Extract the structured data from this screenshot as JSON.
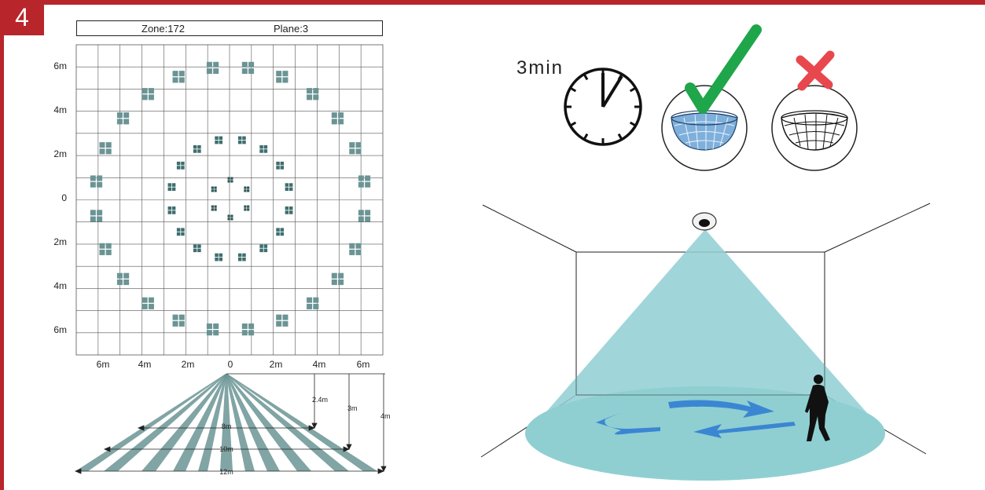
{
  "step_number": "4",
  "detection_header": {
    "zone_label": "Zone:172",
    "plane_label": "Plane:3"
  },
  "grid_axis": {
    "y_labels": [
      "6m",
      "4m",
      "2m",
      "0",
      "2m",
      "4m",
      "6m"
    ],
    "x_labels": [
      "6m",
      "4m",
      "2m",
      "0",
      "2m",
      "4m",
      "6m"
    ]
  },
  "side_view": {
    "heights": [
      "2.4m",
      "3m",
      "4m"
    ],
    "widths": [
      "8m",
      "10m",
      "12m"
    ]
  },
  "timer_label": "3min",
  "colors": {
    "brand_red": "#b8252a",
    "zone_teal": "#6b9494",
    "beam_cyan": "#8fcfd2",
    "check_green": "#1fa64a",
    "cross_red": "#e8474d",
    "arrow_blue": "#3b86d2"
  },
  "icons": {
    "clock": "clock-icon",
    "check": "check-icon",
    "cross": "cross-icon",
    "sensor": "ceiling-sensor-icon",
    "person": "walking-person-icon"
  }
}
